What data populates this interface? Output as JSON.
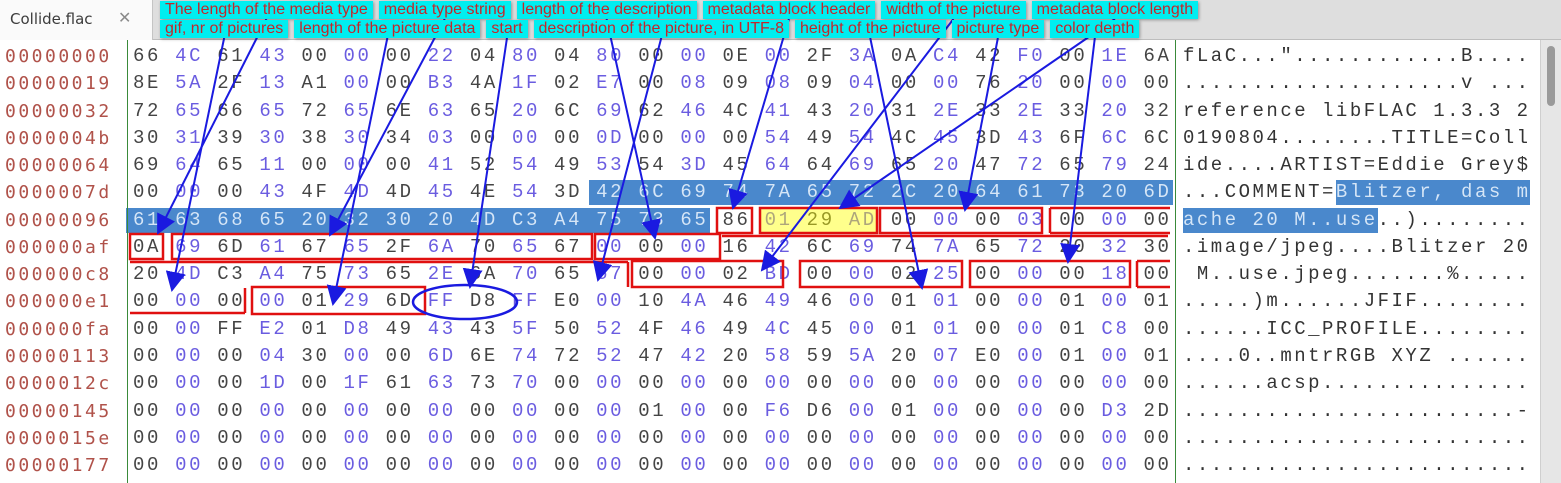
{
  "tab": {
    "title": "Collide.flac",
    "close_icon": "close-x-icon"
  },
  "colors": {
    "offset": "#b0524a",
    "hex_even": "#444444",
    "hex_odd": "#6a5ce0",
    "selection": "#4a88cc",
    "callout_bg": "#00eef0",
    "callout_text": "#c4262a",
    "annotation_box": "#e01010",
    "annotation_arrow": "#1a1ae0",
    "highlight": "#ffff00"
  },
  "selection": {
    "start_byte": 136,
    "end_byte": 163
  },
  "rows": [
    {
      "offset": "00000000",
      "hex": "66 4C 61 43 00 00 00 22 04 80 04 80 00 00 0E 00 2F 3A 0A C4 42 F0 00 1E 6A",
      "ascii": "fLaC...\"............B...."
    },
    {
      "offset": "00000019",
      "hex": "8E 5A 2F 13 A1 00 00 B3 4A 1F 02 E7 00 08 09 08 09 04 00 00 76 20 00 00 00",
      "ascii": "....................v ..."
    },
    {
      "offset": "00000032",
      "hex": "72 65 66 65 72 65 6E 63 65 20 6C 69 62 46 4C 41 43 20 31 2E 33 2E 33 20 32",
      "ascii": "reference libFLAC 1.3.3 2"
    },
    {
      "offset": "0000004b",
      "hex": "30 31 39 30 38 30 34 03 00 00 00 0D 00 00 00 54 49 54 4C 45 3D 43 6F 6C 6C",
      "ascii": "0190804........TITLE=Coll"
    },
    {
      "offset": "00000064",
      "hex": "69 64 65 11 00 00 00 41 52 54 49 53 54 3D 45 64 64 69 65 20 47 72 65 79 24",
      "ascii": "ide....ARTIST=Eddie Grey$"
    },
    {
      "offset": "0000007d",
      "hex": "00 00 00 43 4F 4D 4D 45 4E 54 3D 42 6C 69 74 7A 65 72 2C 20 64 61 73 20 6D",
      "ascii": "...COMMENT=Blitzer, das m"
    },
    {
      "offset": "00000096",
      "hex": "61 63 68 65 20 32 30 20 4D C3 A4 75 73 65 86 01 29 AD 00 00 00 03 00 00 00",
      "ascii": "ache 20 M..use..)........"
    },
    {
      "offset": "000000af",
      "hex": "0A 69 6D 61 67 65 2F 6A 70 65 67 00 00 00 16 42 6C 69 74 7A 65 72 20 32 30",
      "ascii": ".image/jpeg....Blitzer 20"
    },
    {
      "offset": "000000c8",
      "hex": "20 4D C3 A4 75 73 65 2E 6A 70 65 67 00 00 02 BD 00 00 02 25 00 00 00 18 00",
      "ascii": " M..use.jpeg.......%....."
    },
    {
      "offset": "000000e1",
      "hex": "00 00 00 00 01 29 6D FF D8 FF E0 00 10 4A 46 49 46 00 01 01 00 00 01 00 01",
      "ascii": ".....)m......JFIF........"
    },
    {
      "offset": "000000fa",
      "hex": "00 00 FF E2 01 D8 49 43 43 5F 50 52 4F 46 49 4C 45 00 01 01 00 00 01 C8 00",
      "ascii": "......ICC_PROFILE........"
    },
    {
      "offset": "00000113",
      "hex": "00 00 00 04 30 00 00 6D 6E 74 72 52 47 42 20 58 59 5A 20 07 E0 00 01 00 01",
      "ascii": "....0..mntrRGB XYZ ......"
    },
    {
      "offset": "0000012c",
      "hex": "00 00 00 1D 00 1F 61 63 73 70 00 00 00 00 00 00 00 00 00 00 00 00 00 00 00",
      "ascii": "......acsp..............."
    },
    {
      "offset": "00000145",
      "hex": "00 00 00 00 00 00 00 00 00 00 00 00 01 00 00 F6 D6 00 01 00 00 00 00 D3 2D",
      "ascii": "........................-"
    },
    {
      "offset": "0000015e",
      "hex": "00 00 00 00 00 00 00 00 00 00 00 00 00 00 00 00 00 00 00 00 00 00 00 00 00",
      "ascii": "........................."
    },
    {
      "offset": "00000177",
      "hex": "00 00 00 00 00 00 00 00 00 00 00 00 00 00 00 00 00 00 00 00 00 00 00 00 00",
      "ascii": "........................."
    }
  ],
  "annotations": {
    "metadata_block_header": "metadata block header",
    "width": "width of the picture",
    "picture_type": "picture type",
    "media_type_length": "The length of the media type",
    "description_length": "length of the description",
    "metadata_block_length": "metadata block length",
    "media_type_string": "media type string",
    "color_depth": "color depth",
    "gif_pictures": "gif, nr of pictures",
    "start": "start",
    "height": "height of the picture",
    "picture_data_length": "length of the picture data",
    "description": "description of the picture, in UTF-8"
  }
}
